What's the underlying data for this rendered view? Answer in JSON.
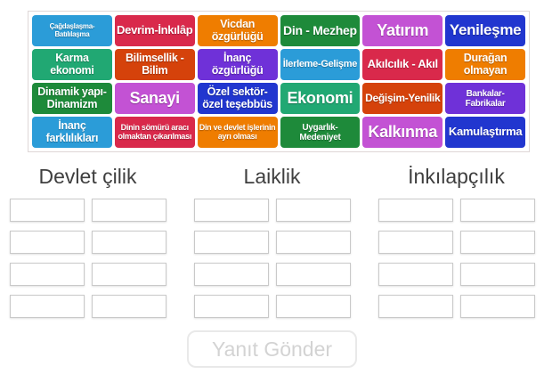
{
  "colors": {
    "page_bg": "#ffffff",
    "board_border": "#ded7d7",
    "slot_border": "#c9c9c9",
    "header_text": "#3f3f3f",
    "button_border": "#e9e9e9",
    "button_text": "#d3d3d3"
  },
  "board": {
    "tiles": [
      {
        "label": "Çağdaşlaşma-Batılılaşma",
        "color": "#2b9cd8",
        "size": "t8"
      },
      {
        "label": "Devrim-İnkılâp",
        "color": "#d9294b",
        "size": "t13"
      },
      {
        "label": "Vicdan özgürlüğü",
        "color": "#ef7d00",
        "size": "t12h"
      },
      {
        "label": "Din - Mezhep",
        "color": "#1e8a3a",
        "size": "t14"
      },
      {
        "label": "Yatırım",
        "color": "#c352d4",
        "size": "t18"
      },
      {
        "label": "Yenileşme",
        "color": "#2136cf",
        "size": "t17"
      },
      {
        "label": "Karma ekonomi",
        "color": "#21a873",
        "size": "t12h"
      },
      {
        "label": "Bilimsellik - Bilim",
        "color": "#d5420b",
        "size": "t12h"
      },
      {
        "label": "İnanç özgürlüğü",
        "color": "#6f31d8",
        "size": "t12h"
      },
      {
        "label": "İlerleme-Gelişme",
        "color": "#2b9cd8",
        "size": "t11"
      },
      {
        "label": "Akılcılık - Akıl",
        "color": "#d9294b",
        "size": "t13"
      },
      {
        "label": "Durağan olmayan",
        "color": "#ef7d00",
        "size": "t12h"
      },
      {
        "label": "Dinamik yapı-Dinamizm",
        "color": "#1e8a3a",
        "size": "t12h"
      },
      {
        "label": "Sanayi",
        "color": "#c352d4",
        "size": "t18"
      },
      {
        "label": "Özel sektör-özel teşebbüs",
        "color": "#2136cf",
        "size": "t12h"
      },
      {
        "label": "Ekonomi",
        "color": "#21a873",
        "size": "t18"
      },
      {
        "label": "Değişim-Yenilik",
        "color": "#d5420b",
        "size": "t12"
      },
      {
        "label": "Bankalar-Fabrikalar",
        "color": "#6f31d8",
        "size": "t10"
      },
      {
        "label": "İnanç farklılıkları",
        "color": "#2b9cd8",
        "size": "t12h"
      },
      {
        "label": "Dinin sömürü aracı olmaktan çıkarılması",
        "color": "#d9294b",
        "size": "t9"
      },
      {
        "label": "Din ve devlet işlerinin ayrı olması",
        "color": "#ef7d00",
        "size": "t9"
      },
      {
        "label": "Uygarlık-Medeniyet",
        "color": "#1e8a3a",
        "size": "t10"
      },
      {
        "label": "Kalkınma",
        "color": "#c352d4",
        "size": "t18"
      },
      {
        "label": "Kamulaştırma",
        "color": "#2136cf",
        "size": "t13"
      }
    ]
  },
  "categories": [
    {
      "label": "Devlet çilik",
      "slot_count": 8
    },
    {
      "label": "Laiklik",
      "slot_count": 8
    },
    {
      "label": "İnkılapçılık",
      "slot_count": 8
    }
  ],
  "submit": {
    "label": "Yanıt Gönder",
    "enabled": false
  }
}
